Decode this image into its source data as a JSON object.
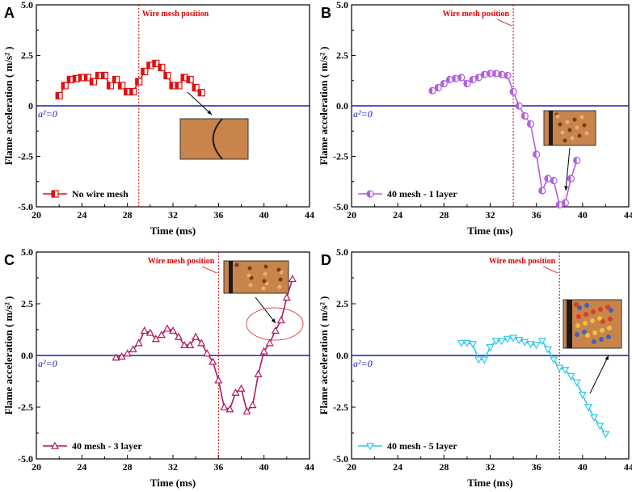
{
  "chart_data": [
    {
      "panel": "A",
      "type": "line",
      "xlabel": "Time (ms)",
      "ylabel": "Flame  acceleration ( m/s² )",
      "xlim": [
        20,
        44
      ],
      "ylim": [
        -5.0,
        5.0
      ],
      "xticks": [
        "20",
        "24",
        "28",
        "32",
        "36",
        "40",
        "44"
      ],
      "yticks": [
        "5.0",
        "2.5",
        "0",
        "-2.5",
        "-5.0"
      ],
      "mesh_label": "Wire mesh position",
      "mesh_x": 29,
      "zero_label": "a²=0",
      "legend": "No wire mesh",
      "color": "#e01010",
      "marker": "square",
      "x": [
        22.0,
        22.5,
        23.0,
        23.5,
        24.0,
        24.5,
        25.0,
        25.5,
        26.0,
        26.5,
        27.0,
        27.5,
        28.0,
        28.5,
        29.0,
        29.5,
        30.0,
        30.5,
        31.0,
        31.5,
        32.0,
        32.5,
        33.0,
        33.5,
        34.0,
        34.5
      ],
      "y": [
        0.5,
        1.0,
        1.3,
        1.35,
        1.4,
        1.4,
        1.2,
        1.5,
        1.5,
        1.0,
        1.3,
        1.0,
        0.7,
        0.7,
        1.2,
        1.7,
        2.0,
        2.1,
        1.9,
        1.5,
        1.0,
        1.0,
        1.4,
        1.3,
        0.9,
        0.65
      ]
    },
    {
      "panel": "B",
      "type": "line",
      "xlabel": "Time (ms)",
      "ylabel": "Flame  acceleration ( m/s² )",
      "xlim": [
        20,
        44
      ],
      "ylim": [
        -5.0,
        5.0
      ],
      "xticks": [
        "20",
        "24",
        "28",
        "32",
        "36",
        "40",
        "44"
      ],
      "yticks": [
        "5.0",
        "2.5",
        "0.0",
        "-2.5",
        "-5.0"
      ],
      "mesh_label": "Wire mesh position",
      "mesh_x": 34,
      "zero_label": "a²=0",
      "legend": "40 mesh - 1 layer",
      "color": "#b060e0",
      "marker": "circle",
      "x": [
        27.0,
        27.5,
        28.0,
        28.5,
        29.0,
        29.5,
        30.0,
        30.5,
        31.0,
        31.5,
        32.0,
        32.5,
        33.0,
        33.5,
        34.0,
        34.5,
        35.0,
        35.5,
        36.0,
        36.5,
        37.0,
        37.5,
        38.0,
        38.5,
        39.0,
        39.5
      ],
      "y": [
        0.75,
        0.9,
        1.1,
        1.3,
        1.35,
        1.4,
        1.1,
        1.3,
        1.4,
        1.55,
        1.6,
        1.6,
        1.55,
        1.5,
        0.7,
        0.0,
        -0.5,
        -0.9,
        -2.4,
        -4.2,
        -3.6,
        -3.7,
        -4.9,
        -4.8,
        -3.6,
        -2.7
      ]
    },
    {
      "panel": "C",
      "type": "line",
      "xlabel": "Time (ms)",
      "ylabel": "Flame  acceleration ( m/s² )",
      "xlim": [
        20,
        44
      ],
      "ylim": [
        -5.0,
        5.0
      ],
      "xticks": [
        "20",
        "24",
        "28",
        "32",
        "36",
        "40",
        "44"
      ],
      "yticks": [
        "5.0",
        "2.5",
        "0.0",
        "-2.5",
        "-5.0"
      ],
      "mesh_label": "Wire mesh position",
      "mesh_x": 36,
      "zero_label": "a²=0",
      "legend": "40 mesh - 3 layer",
      "color": "#b01860",
      "marker": "triangle-up",
      "x": [
        27.0,
        27.5,
        28.0,
        28.5,
        29.0,
        29.5,
        30.0,
        30.5,
        31.0,
        31.5,
        32.0,
        32.5,
        33.0,
        33.5,
        34.0,
        34.5,
        35.0,
        35.5,
        36.0,
        36.5,
        37.0,
        37.5,
        38.0,
        38.5,
        39.0,
        39.5,
        40.0,
        40.5,
        41.0,
        41.5,
        42.0,
        42.5
      ],
      "y": [
        -0.1,
        -0.05,
        0.1,
        0.3,
        0.6,
        1.2,
        1.1,
        0.8,
        1.0,
        1.3,
        1.2,
        0.9,
        0.5,
        0.5,
        0.9,
        0.6,
        0.1,
        -0.3,
        -1.2,
        -2.5,
        -2.6,
        -1.8,
        -1.6,
        -2.7,
        -2.4,
        -0.9,
        0.2,
        0.6,
        1.2,
        1.7,
        2.8,
        3.7
      ]
    },
    {
      "panel": "D",
      "type": "line",
      "xlabel": "Time (ms)",
      "ylabel": "Flame  acceleration ( m/s² )",
      "xlim": [
        20,
        44
      ],
      "ylim": [
        -5.0,
        5.0
      ],
      "xticks": [
        "20",
        "24",
        "28",
        "32",
        "36",
        "40",
        "44"
      ],
      "yticks": [
        "5.0",
        "2.5",
        "0.0",
        "-2.5",
        "-5.0"
      ],
      "mesh_label": "Wire mesh position",
      "mesh_x": 38,
      "zero_label": "a²=0",
      "legend": "40 mesh - 5 layer",
      "color": "#30c8e8",
      "marker": "triangle-down",
      "x": [
        29.5,
        30.0,
        30.5,
        31.0,
        31.5,
        32.0,
        32.5,
        33.0,
        33.5,
        34.0,
        34.5,
        35.0,
        35.5,
        36.0,
        36.5,
        37.0,
        37.5,
        38.0,
        38.5,
        39.0,
        39.5,
        40.0,
        40.5,
        41.0,
        41.5,
        42.0
      ],
      "y": [
        0.6,
        0.6,
        0.55,
        -0.2,
        -0.2,
        0.4,
        0.7,
        0.7,
        0.8,
        0.85,
        0.75,
        0.65,
        0.55,
        0.5,
        0.7,
        0.3,
        -0.2,
        -0.6,
        -0.7,
        -1.0,
        -1.3,
        -1.9,
        -2.5,
        -3.0,
        -3.4,
        -3.8
      ]
    }
  ]
}
